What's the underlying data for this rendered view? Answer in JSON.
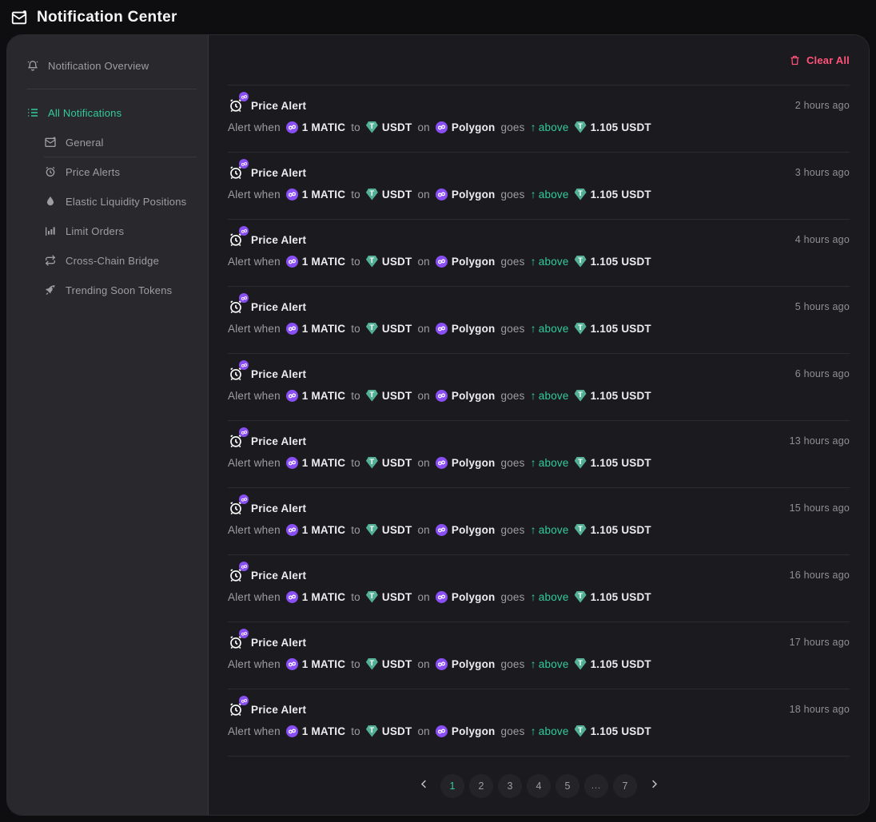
{
  "header": {
    "title": "Notification Center"
  },
  "sidebar": {
    "overview_label": "Notification Overview",
    "items": [
      {
        "label": "All Notifications",
        "icon": "list-icon",
        "active": true
      },
      {
        "label": "General",
        "icon": "mail-icon",
        "active": false
      },
      {
        "label": "Price Alerts",
        "icon": "alarm-icon",
        "active": false
      },
      {
        "label": "Elastic Liquidity Positions",
        "icon": "droplet-icon",
        "active": false
      },
      {
        "label": "Limit Orders",
        "icon": "bar-chart-icon",
        "active": false
      },
      {
        "label": "Cross-Chain Bridge",
        "icon": "bridge-icon",
        "active": false
      },
      {
        "label": "Trending Soon Tokens",
        "icon": "rocket-icon",
        "active": false
      }
    ]
  },
  "main": {
    "clear_all_label": "Clear All",
    "alert": {
      "prefix": "Alert when",
      "amount": "1 MATIC",
      "to_word": "to",
      "token": "USDT",
      "on_word": "on",
      "network": "Polygon",
      "goes_word": "goes",
      "arrow": "↑",
      "direction": "above",
      "price": "1.105 USDT"
    },
    "notifications": [
      {
        "title": "Price Alert",
        "time": "2 hours ago"
      },
      {
        "title": "Price Alert",
        "time": "3 hours ago"
      },
      {
        "title": "Price Alert",
        "time": "4 hours ago"
      },
      {
        "title": "Price Alert",
        "time": "5 hours ago"
      },
      {
        "title": "Price Alert",
        "time": "6 hours ago"
      },
      {
        "title": "Price Alert",
        "time": "13 hours ago"
      },
      {
        "title": "Price Alert",
        "time": "15 hours ago"
      },
      {
        "title": "Price Alert",
        "time": "16 hours ago"
      },
      {
        "title": "Price Alert",
        "time": "17 hours ago"
      },
      {
        "title": "Price Alert",
        "time": "18 hours ago"
      }
    ],
    "pagination": {
      "pages": [
        "1",
        "2",
        "3",
        "4",
        "5",
        "...",
        "7"
      ],
      "active": "1"
    }
  },
  "colors": {
    "accent_green": "#31CB9E",
    "danger_red": "#FF537B",
    "matic_purple": "#8247E5",
    "usdt_teal": "#50AF95"
  }
}
